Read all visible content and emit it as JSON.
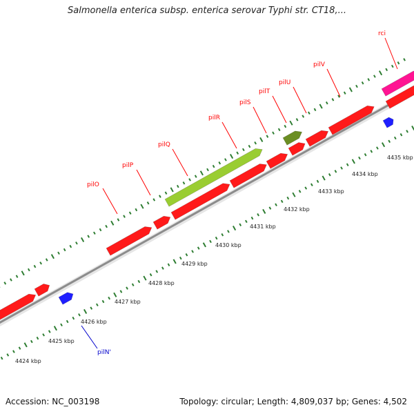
{
  "title": "Salmonella enterica subsp. enterica serovar Typhi str. CT18,...",
  "footer": {
    "accession": "Accession: NC_003198",
    "topology": "Topology: circular; Length: 4,809,037 bp; Genes: 4,502"
  },
  "colors": {
    "backbone": "#9a9a9a",
    "tick": "#2e7d32",
    "gene_red": "#ff1a1a",
    "gene_blue": "#1f1fff",
    "gene_olive": "#6b8e23",
    "gene_magenta": "#ff1493",
    "gene_lightgreen": "#9acd32",
    "label_red": "#ff0000",
    "label_blue": "#0000cc"
  },
  "scale_labels": [
    "4424 kbp",
    "4425 kbp",
    "4426 kbp",
    "4427 kbp",
    "4428 kbp",
    "4429 kbp",
    "4430 kbp",
    "4431 kbp",
    "4432 kbp",
    "4433 kbp",
    "4434 kbp",
    "4435 kbp"
  ],
  "gene_labels": [
    {
      "name": "pilO",
      "strand": "top"
    },
    {
      "name": "pilP",
      "strand": "top"
    },
    {
      "name": "pilQ",
      "strand": "top"
    },
    {
      "name": "pilR",
      "strand": "top"
    },
    {
      "name": "pilS",
      "strand": "top"
    },
    {
      "name": "pilT",
      "strand": "top"
    },
    {
      "name": "pilU",
      "strand": "top"
    },
    {
      "name": "pilV",
      "strand": "top"
    },
    {
      "name": "rci",
      "strand": "top"
    },
    {
      "name": "pilN'",
      "strand": "bottom"
    }
  ]
}
